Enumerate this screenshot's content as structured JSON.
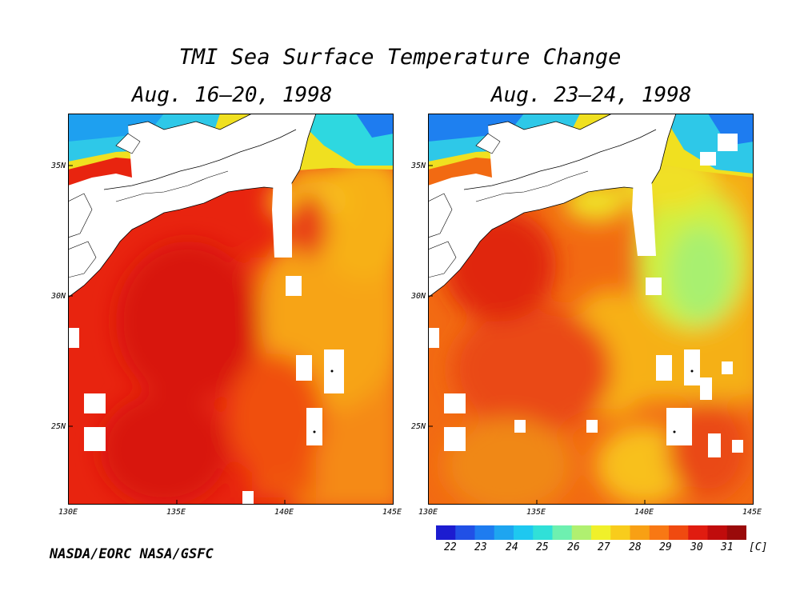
{
  "title": "TMI Sea Surface Temperature Change",
  "panels": [
    {
      "subtitle": "Aug. 16–20, 1998"
    },
    {
      "subtitle": "Aug. 23–24, 1998"
    }
  ],
  "axes": {
    "lat_labels": [
      "35N",
      "30N",
      "25N"
    ],
    "lat_values": [
      35,
      30,
      25
    ],
    "lon_labels": [
      "130E",
      "135E",
      "140E",
      "145E"
    ],
    "lon_values": [
      130,
      135,
      140,
      145
    ],
    "lon_range": [
      130,
      145
    ],
    "lat_range": [
      22,
      37
    ]
  },
  "colorbar": {
    "labels": [
      "22",
      "23",
      "24",
      "25",
      "26",
      "27",
      "28",
      "29",
      "30",
      "31"
    ],
    "unit": "[C]",
    "colors": [
      "#1c1cd0",
      "#2150e6",
      "#1e7cf0",
      "#1ea5f0",
      "#1ec8f0",
      "#30e0d8",
      "#6ef0b0",
      "#b0f070",
      "#f0f02a",
      "#f8cc1c",
      "#f8a014",
      "#f87814",
      "#f04a10",
      "#e01c10",
      "#c00c0c",
      "#9a0a0a"
    ]
  },
  "credit": "NASDA/EORC NASA/GSFC"
}
